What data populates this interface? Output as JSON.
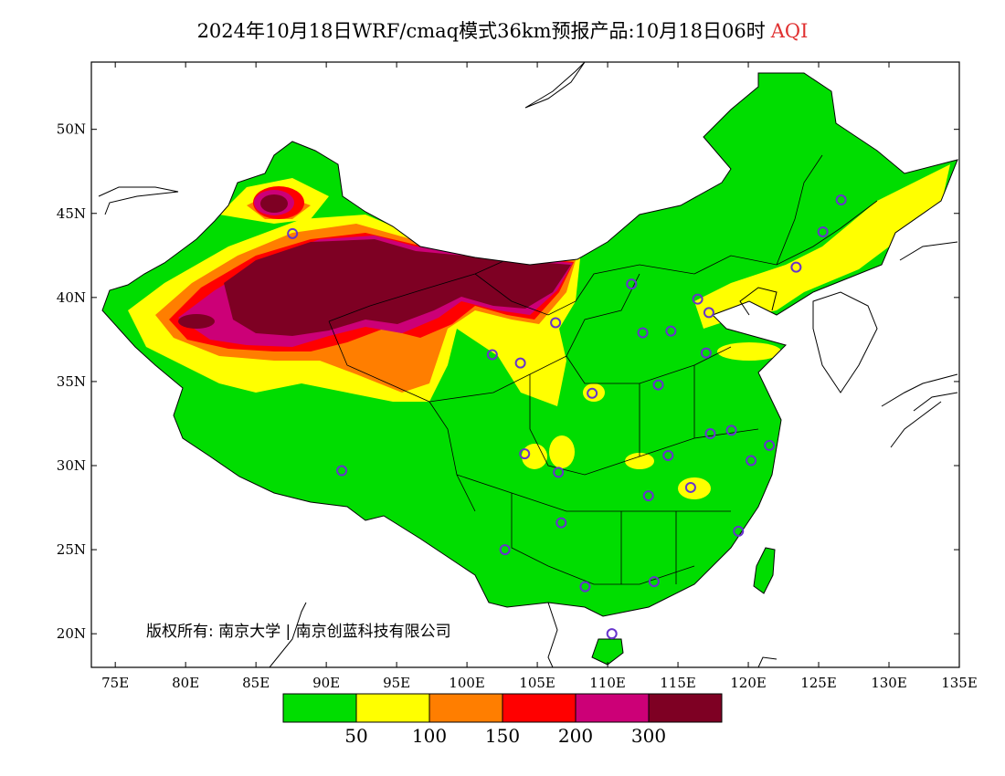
{
  "title": {
    "main": "2024年10月18日WRF/cmaq模式36km预报产品:10月18日06时",
    "variable": "AQI"
  },
  "map": {
    "lon_range": [
      73,
      135
    ],
    "lat_range": [
      18,
      54
    ],
    "lon_ticks": [
      "75E",
      "80E",
      "85E",
      "90E",
      "95E",
      "100E",
      "105E",
      "110E",
      "115E",
      "120E",
      "125E",
      "130E",
      "135E"
    ],
    "lat_ticks": [
      "50N",
      "45N",
      "40N",
      "35N",
      "30N",
      "25N",
      "20N"
    ],
    "copyright": "版权所有: 南京大学 | 南京创蓝科技有限公司"
  },
  "legend": {
    "colors": [
      "#00dd00",
      "#ffff00",
      "#ff7e00",
      "#ff0000",
      "#cc0077",
      "#7e0023"
    ],
    "labels": [
      "50",
      "100",
      "150",
      "200",
      "300"
    ]
  },
  "cities": [
    {
      "lon": 87.6,
      "lat": 43.8
    },
    {
      "lon": 91.1,
      "lat": 29.7
    },
    {
      "lon": 101.8,
      "lat": 36.6
    },
    {
      "lon": 103.8,
      "lat": 36.1
    },
    {
      "lon": 106.3,
      "lat": 38.5
    },
    {
      "lon": 111.7,
      "lat": 40.8
    },
    {
      "lon": 112.5,
      "lat": 37.9
    },
    {
      "lon": 114.5,
      "lat": 38.0
    },
    {
      "lon": 116.4,
      "lat": 39.9
    },
    {
      "lon": 117.2,
      "lat": 39.1
    },
    {
      "lon": 123.4,
      "lat": 41.8
    },
    {
      "lon": 125.3,
      "lat": 43.9
    },
    {
      "lon": 126.6,
      "lat": 45.8
    },
    {
      "lon": 117.0,
      "lat": 36.7
    },
    {
      "lon": 113.6,
      "lat": 34.8
    },
    {
      "lon": 108.9,
      "lat": 34.3
    },
    {
      "lon": 104.1,
      "lat": 30.7
    },
    {
      "lon": 106.5,
      "lat": 29.6
    },
    {
      "lon": 114.3,
      "lat": 30.6
    },
    {
      "lon": 117.3,
      "lat": 31.9
    },
    {
      "lon": 118.8,
      "lat": 32.1
    },
    {
      "lon": 120.2,
      "lat": 30.3
    },
    {
      "lon": 121.5,
      "lat": 31.2
    },
    {
      "lon": 112.9,
      "lat": 28.2
    },
    {
      "lon": 115.9,
      "lat": 28.7
    },
    {
      "lon": 106.7,
      "lat": 26.6
    },
    {
      "lon": 102.7,
      "lat": 25.0
    },
    {
      "lon": 119.3,
      "lat": 26.1
    },
    {
      "lon": 113.3,
      "lat": 23.1
    },
    {
      "lon": 108.4,
      "lat": 22.8
    },
    {
      "lon": 110.3,
      "lat": 20.0
    }
  ]
}
